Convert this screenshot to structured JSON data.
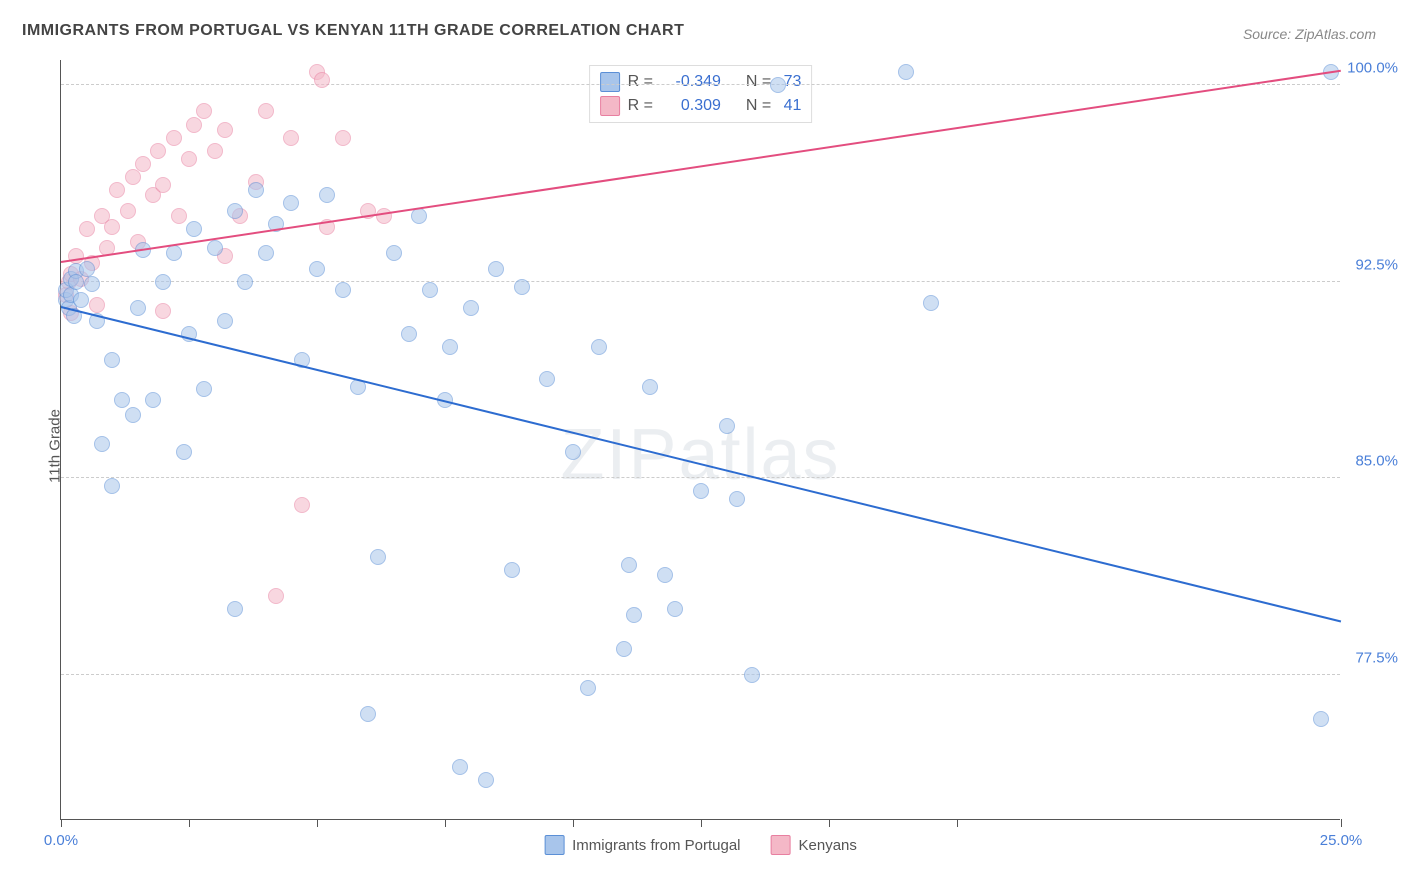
{
  "title": "IMMIGRANTS FROM PORTUGAL VS KENYAN 11TH GRADE CORRELATION CHART",
  "source": "Source: ZipAtlas.com",
  "y_axis_label": "11th Grade",
  "watermark": "ZIPatlas",
  "chart": {
    "type": "scatter",
    "xlim": [
      0,
      25
    ],
    "ylim": [
      72,
      101
    ],
    "x_ticks": [
      0,
      2.5,
      5.0,
      7.5,
      10.0,
      12.5,
      15.0,
      17.5,
      25.0
    ],
    "x_tick_labels": {
      "0": "0.0%",
      "25": "25.0%"
    },
    "y_ticks": [
      77.5,
      85.0,
      92.5,
      100.0
    ],
    "y_tick_labels": [
      "77.5%",
      "85.0%",
      "92.5%",
      "100.0%"
    ],
    "grid_color": "#cccccc",
    "axis_color": "#555555",
    "background_color": "#ffffff"
  },
  "series": {
    "portugal": {
      "label": "Immigrants from Portugal",
      "color_fill": "#a8c5eb",
      "color_stroke": "#5b8fd6",
      "R": "-0.349",
      "N": "73",
      "trend": {
        "x1": 0,
        "y1": 91.5,
        "x2": 25,
        "y2": 79.5,
        "color": "#2d6cd0"
      },
      "points": [
        [
          0.1,
          91.8
        ],
        [
          0.1,
          92.2
        ],
        [
          0.15,
          91.5
        ],
        [
          0.2,
          92.0
        ],
        [
          0.2,
          92.6
        ],
        [
          0.25,
          91.2
        ],
        [
          0.3,
          92.9
        ],
        [
          0.3,
          92.5
        ],
        [
          0.4,
          91.8
        ],
        [
          0.5,
          93.0
        ],
        [
          0.6,
          92.4
        ],
        [
          0.7,
          91.0
        ],
        [
          0.8,
          86.3
        ],
        [
          1.0,
          89.5
        ],
        [
          1.0,
          84.7
        ],
        [
          1.2,
          88.0
        ],
        [
          1.4,
          87.4
        ],
        [
          1.5,
          91.5
        ],
        [
          1.6,
          93.7
        ],
        [
          1.8,
          88.0
        ],
        [
          2.0,
          92.5
        ],
        [
          2.2,
          93.6
        ],
        [
          2.4,
          86.0
        ],
        [
          2.5,
          90.5
        ],
        [
          2.6,
          94.5
        ],
        [
          2.8,
          88.4
        ],
        [
          3.0,
          93.8
        ],
        [
          3.2,
          91.0
        ],
        [
          3.4,
          95.2
        ],
        [
          3.4,
          80.0
        ],
        [
          3.6,
          92.5
        ],
        [
          3.8,
          96.0
        ],
        [
          4.0,
          93.6
        ],
        [
          4.2,
          94.7
        ],
        [
          4.5,
          95.5
        ],
        [
          4.7,
          89.5
        ],
        [
          5.0,
          93.0
        ],
        [
          5.2,
          95.8
        ],
        [
          5.5,
          92.2
        ],
        [
          5.8,
          88.5
        ],
        [
          6.0,
          76.0
        ],
        [
          6.2,
          82.0
        ],
        [
          6.5,
          93.6
        ],
        [
          6.8,
          90.5
        ],
        [
          7.0,
          95.0
        ],
        [
          7.2,
          92.2
        ],
        [
          7.5,
          88.0
        ],
        [
          7.6,
          90.0
        ],
        [
          7.8,
          74.0
        ],
        [
          8.0,
          91.5
        ],
        [
          8.3,
          73.5
        ],
        [
          8.5,
          93.0
        ],
        [
          8.8,
          81.5
        ],
        [
          9.0,
          92.3
        ],
        [
          9.5,
          88.8
        ],
        [
          10.0,
          86.0
        ],
        [
          10.3,
          77.0
        ],
        [
          10.5,
          90.0
        ],
        [
          11.0,
          78.5
        ],
        [
          11.1,
          81.7
        ],
        [
          11.2,
          79.8
        ],
        [
          11.5,
          88.5
        ],
        [
          11.8,
          81.3
        ],
        [
          12.0,
          80.0
        ],
        [
          12.5,
          84.5
        ],
        [
          13.0,
          87.0
        ],
        [
          13.2,
          84.2
        ],
        [
          13.5,
          77.5
        ],
        [
          14.0,
          100.0
        ],
        [
          16.5,
          100.5
        ],
        [
          17.0,
          91.7
        ],
        [
          24.6,
          75.8
        ],
        [
          24.8,
          100.5
        ]
      ]
    },
    "kenyan": {
      "label": "Kenyans",
      "color_fill": "#f4b8c7",
      "color_stroke": "#e87fa0",
      "R": "0.309",
      "N": "41",
      "trend": {
        "x1": 0,
        "y1": 93.2,
        "x2": 25,
        "y2": 100.5,
        "color": "#e34d7f"
      },
      "points": [
        [
          0.1,
          92.0
        ],
        [
          0.15,
          92.5
        ],
        [
          0.2,
          91.3
        ],
        [
          0.2,
          92.8
        ],
        [
          0.3,
          93.5
        ],
        [
          0.4,
          92.6
        ],
        [
          0.5,
          94.5
        ],
        [
          0.6,
          93.2
        ],
        [
          0.7,
          91.6
        ],
        [
          0.8,
          95.0
        ],
        [
          0.9,
          93.8
        ],
        [
          1.0,
          94.6
        ],
        [
          1.1,
          96.0
        ],
        [
          1.3,
          95.2
        ],
        [
          1.4,
          96.5
        ],
        [
          1.5,
          94.0
        ],
        [
          1.6,
          97.0
        ],
        [
          1.8,
          95.8
        ],
        [
          1.9,
          97.5
        ],
        [
          2.0,
          96.2
        ],
        [
          2.0,
          91.4
        ],
        [
          2.2,
          98.0
        ],
        [
          2.3,
          95.0
        ],
        [
          2.5,
          97.2
        ],
        [
          2.6,
          98.5
        ],
        [
          2.8,
          99.0
        ],
        [
          3.0,
          97.5
        ],
        [
          3.2,
          93.5
        ],
        [
          3.2,
          98.3
        ],
        [
          3.5,
          95.0
        ],
        [
          3.8,
          96.3
        ],
        [
          4.0,
          99.0
        ],
        [
          4.2,
          80.5
        ],
        [
          4.5,
          98.0
        ],
        [
          5.0,
          100.5
        ],
        [
          5.2,
          94.6
        ],
        [
          5.5,
          98.0
        ],
        [
          6.0,
          95.2
        ],
        [
          4.7,
          84.0
        ],
        [
          5.1,
          100.2
        ],
        [
          6.3,
          95.0
        ]
      ]
    }
  },
  "legend_top": {
    "R_label": "R =",
    "N_label": "N ="
  }
}
